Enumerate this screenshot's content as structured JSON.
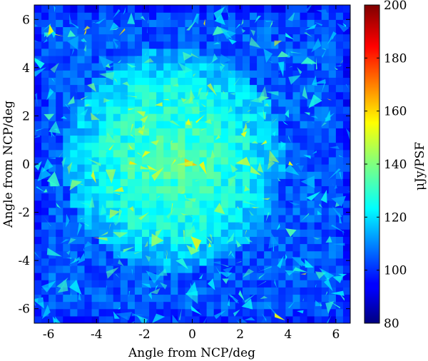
{
  "chart_data": {
    "type": "heatmap",
    "title": "",
    "xlabel": "Angle from NCP/deg",
    "ylabel": "Angle from NCP/deg",
    "xlim": [
      -6.6,
      6.6
    ],
    "ylim": [
      -6.6,
      6.6
    ],
    "x_ticks": [
      "-6",
      "-4",
      "-2",
      "0",
      "2",
      "4",
      "6"
    ],
    "y_ticks": [
      "-6",
      "-4",
      "-2",
      "0",
      "2",
      "4",
      "6"
    ],
    "colorbar": {
      "label": "μJy/PSF",
      "range": [
        80,
        200
      ],
      "ticks": [
        "80",
        "100",
        "120",
        "140",
        "160",
        "180",
        "200"
      ],
      "colormap": "jet"
    },
    "field_description": {
      "background_level_uJy": 105,
      "central_level_uJy": 135,
      "center_xy": [
        -0.8,
        0.2
      ],
      "hotspot_peak_uJy": 160
    },
    "grid": false,
    "legend": "none"
  }
}
